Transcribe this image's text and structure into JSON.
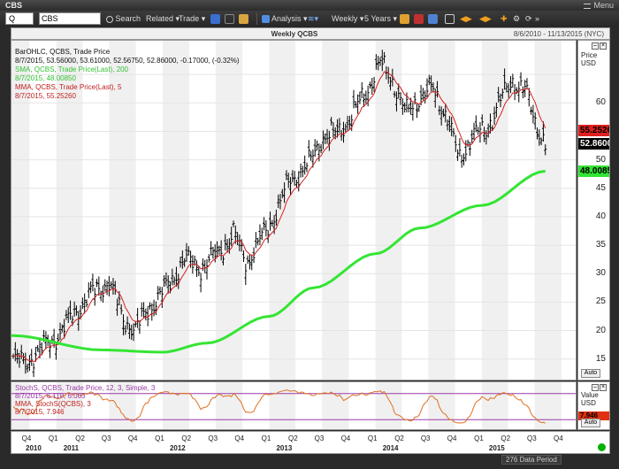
{
  "window": {
    "title": "CBS",
    "menu_label": "Menu"
  },
  "toolbar": {
    "symbol_type": "Q",
    "symbol_value": "CBS",
    "search_label": "Search",
    "related_label": "Related",
    "trade_label": "Trade",
    "analysis_label": "Analysis",
    "period_label": "Weekly",
    "range_label": "5 Years"
  },
  "chart_title": "Weekly QCBS",
  "date_range": "8/6/2010 - 11/13/2015 (NYC)",
  "legend": {
    "bar_line1": "BarOHLC, QCBS, Trade Price",
    "bar_line2": "8/7/2015, 53.56000, 53.61000, 52.56750, 52.86000, -0.17000, (-0.32%)",
    "sma_line1": "SMA, QCBS, Trade Price(Last), 200",
    "sma_line2": "8/7/2015, 48.00850",
    "mma_line1": "MMA, QCBS, Trade Price(Last), 5",
    "mma_line2": "8/7/2015, 55.25260"
  },
  "osc_legend": {
    "stoch_line1": "StochS, QCBS, Trade Price, 12, 3, Simple, 3",
    "stoch_line2": "8/7/2015, 6.110, 6.003",
    "mma_line1": "MMA, StochS(QCBS), 3",
    "mma_line2": "8/7/2015, 7.946"
  },
  "price_axis": {
    "header_line1": "Price",
    "header_line2": "USD",
    "ticks": [
      "60",
      "55",
      "50",
      "45",
      "40",
      "35",
      "30",
      "25",
      "20",
      "15"
    ],
    "tag_mma": "55.2526",
    "tag_last": "52.8600",
    "tag_sma": "48.0085",
    "auto_label": "Auto"
  },
  "osc_axis": {
    "header_line1": "Value",
    "header_line2": "USD",
    "tag_value": "7.946",
    "auto_label": "Auto"
  },
  "date_axis": {
    "quarters": [
      "Q4",
      "Q1",
      "Q2",
      "Q3",
      "Q4",
      "Q1",
      "Q2",
      "Q3",
      "Q4",
      "Q1",
      "Q2",
      "Q3",
      "Q4",
      "Q1",
      "Q2",
      "Q3",
      "Q4",
      "Q1",
      "Q2",
      "Q3",
      "Q4"
    ],
    "years": [
      "2010",
      "2011",
      "2012",
      "2013",
      "2014",
      "2015"
    ]
  },
  "status": {
    "data_period": "276 Data Period"
  },
  "colors": {
    "sma": "#33e533",
    "mma": "#d42020",
    "bars": "#000000",
    "stoch": "#e07020",
    "osc_line": "#9a3aa8",
    "last_tag": "#000000",
    "mma_tag": "#e02020",
    "sma_tag": "#33e533"
  },
  "chart_data": {
    "type": "bar",
    "title": "Weekly QCBS",
    "ylabel": "Price USD",
    "ylim": [
      12,
      70
    ],
    "x_start": "2010-08-06",
    "x_end": "2015-11-13",
    "anchors": [
      [
        "2010-08-06",
        15.0
      ],
      [
        "2010-09-15",
        14.2
      ],
      [
        "2010-11-15",
        17.0
      ],
      [
        "2011-01-15",
        19.5
      ],
      [
        "2011-03-01",
        23.0
      ],
      [
        "2011-05-01",
        26.5
      ],
      [
        "2011-07-01",
        28.5
      ],
      [
        "2011-08-20",
        22.0
      ],
      [
        "2011-10-01",
        20.0
      ],
      [
        "2011-11-15",
        24.0
      ],
      [
        "2012-01-15",
        27.5
      ],
      [
        "2012-03-15",
        32.5
      ],
      [
        "2012-05-15",
        31.0
      ],
      [
        "2012-07-15",
        34.0
      ],
      [
        "2012-09-01",
        37.0
      ],
      [
        "2012-10-15",
        32.0
      ],
      [
        "2012-11-15",
        34.5
      ],
      [
        "2013-01-01",
        38.5
      ],
      [
        "2013-03-15",
        46.5
      ],
      [
        "2013-05-15",
        49.0
      ],
      [
        "2013-07-01",
        54.0
      ],
      [
        "2013-08-20",
        54.5
      ],
      [
        "2013-10-01",
        57.0
      ],
      [
        "2013-12-01",
        62.0
      ],
      [
        "2014-01-15",
        67.0
      ],
      [
        "2014-03-01",
        64.0
      ],
      [
        "2014-04-15",
        58.0
      ],
      [
        "2014-06-01",
        61.0
      ],
      [
        "2014-07-15",
        62.5
      ],
      [
        "2014-09-01",
        58.0
      ],
      [
        "2014-10-15",
        50.0
      ],
      [
        "2014-12-01",
        54.5
      ],
      [
        "2015-01-15",
        55.0
      ],
      [
        "2015-03-01",
        60.0
      ],
      [
        "2015-04-15",
        64.0
      ],
      [
        "2015-06-01",
        62.0
      ],
      [
        "2015-07-01",
        57.0
      ],
      [
        "2015-08-07",
        52.86
      ]
    ],
    "series": [
      {
        "name": "BarOHLC, QCBS, Trade Price",
        "last": [
          53.56,
          53.61,
          52.5675,
          52.86
        ]
      },
      {
        "name": "SMA, QCBS, Trade Price(Last), 200",
        "last": 48.0085,
        "points": [
          [
            "2010-08-06",
            19.1
          ],
          [
            "2011-06-01",
            16.6
          ],
          [
            "2012-01-01",
            16.2
          ],
          [
            "2012-06-01",
            17.8
          ],
          [
            "2013-01-01",
            22.5
          ],
          [
            "2013-06-01",
            27.5
          ],
          [
            "2014-01-01",
            33.5
          ],
          [
            "2014-06-01",
            38.0
          ],
          [
            "2015-01-01",
            42.0
          ],
          [
            "2015-08-07",
            48.0085
          ]
        ]
      },
      {
        "name": "MMA, QCBS, Trade Price(Last), 5",
        "last": 55.2526
      }
    ],
    "osc": {
      "ylim": [
        0,
        100
      ],
      "upper": 80,
      "lower": 20,
      "series": [
        {
          "name": "StochS, QCBS, Trade Price, 12, 3, Simple, 3",
          "last": [
            6.11,
            6.003
          ]
        },
        {
          "name": "MMA, StochS(QCBS), 3",
          "last": 7.946
        }
      ]
    },
    "grid": true,
    "legend": "top-left"
  }
}
